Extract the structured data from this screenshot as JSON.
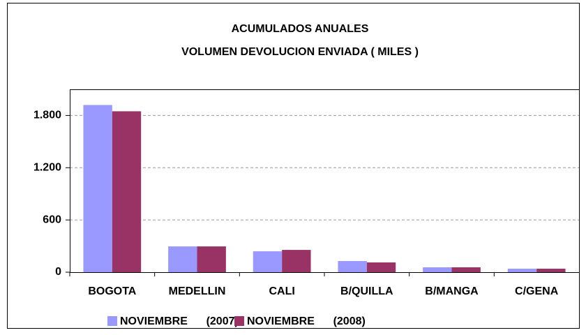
{
  "chart_data": {
    "type": "bar",
    "title": "ACUMULADOS  ANUALES",
    "subtitle": "VOLUMEN DEVOLUCION  ENVIADA ( MILES )",
    "categories": [
      "BOGOTA",
      "MEDELLIN",
      "CALI",
      "B/QUILLA",
      "B/MANGA",
      "C/GENA"
    ],
    "series": [
      {
        "name": "NOVIEMBRE      (2007)",
        "color": "#9999ff",
        "values": [
          1920,
          296,
          240,
          128,
          56,
          40
        ]
      },
      {
        "name": "NOVIEMBRE      (2008)",
        "color": "#993366",
        "values": [
          1848,
          296,
          256,
          112,
          56,
          40
        ]
      }
    ],
    "ylim": [
      0,
      2100
    ],
    "yticks": [
      0,
      600,
      {
        "value": 1200,
        "label": "1.200"
      },
      {
        "value": 1800,
        "label": "1.800"
      }
    ],
    "grid": true
  }
}
